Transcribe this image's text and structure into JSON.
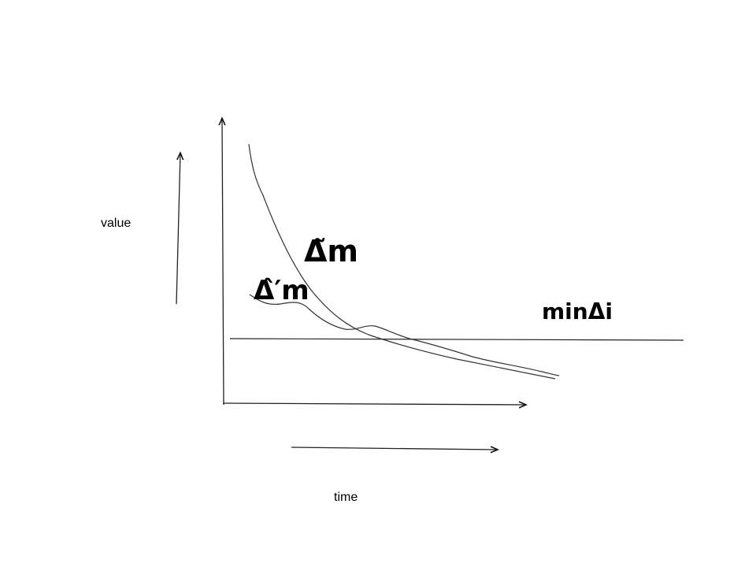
{
  "axis_labels": {
    "y": "value",
    "x": "time"
  },
  "curve_labels": {
    "tilde_delta": "Δ̃m",
    "hat_delta_prime": "Δ̂′m",
    "min_delta": "minΔi"
  },
  "colors": {
    "ink": "#000000",
    "line": "#333333",
    "background": "#ffffff"
  }
}
